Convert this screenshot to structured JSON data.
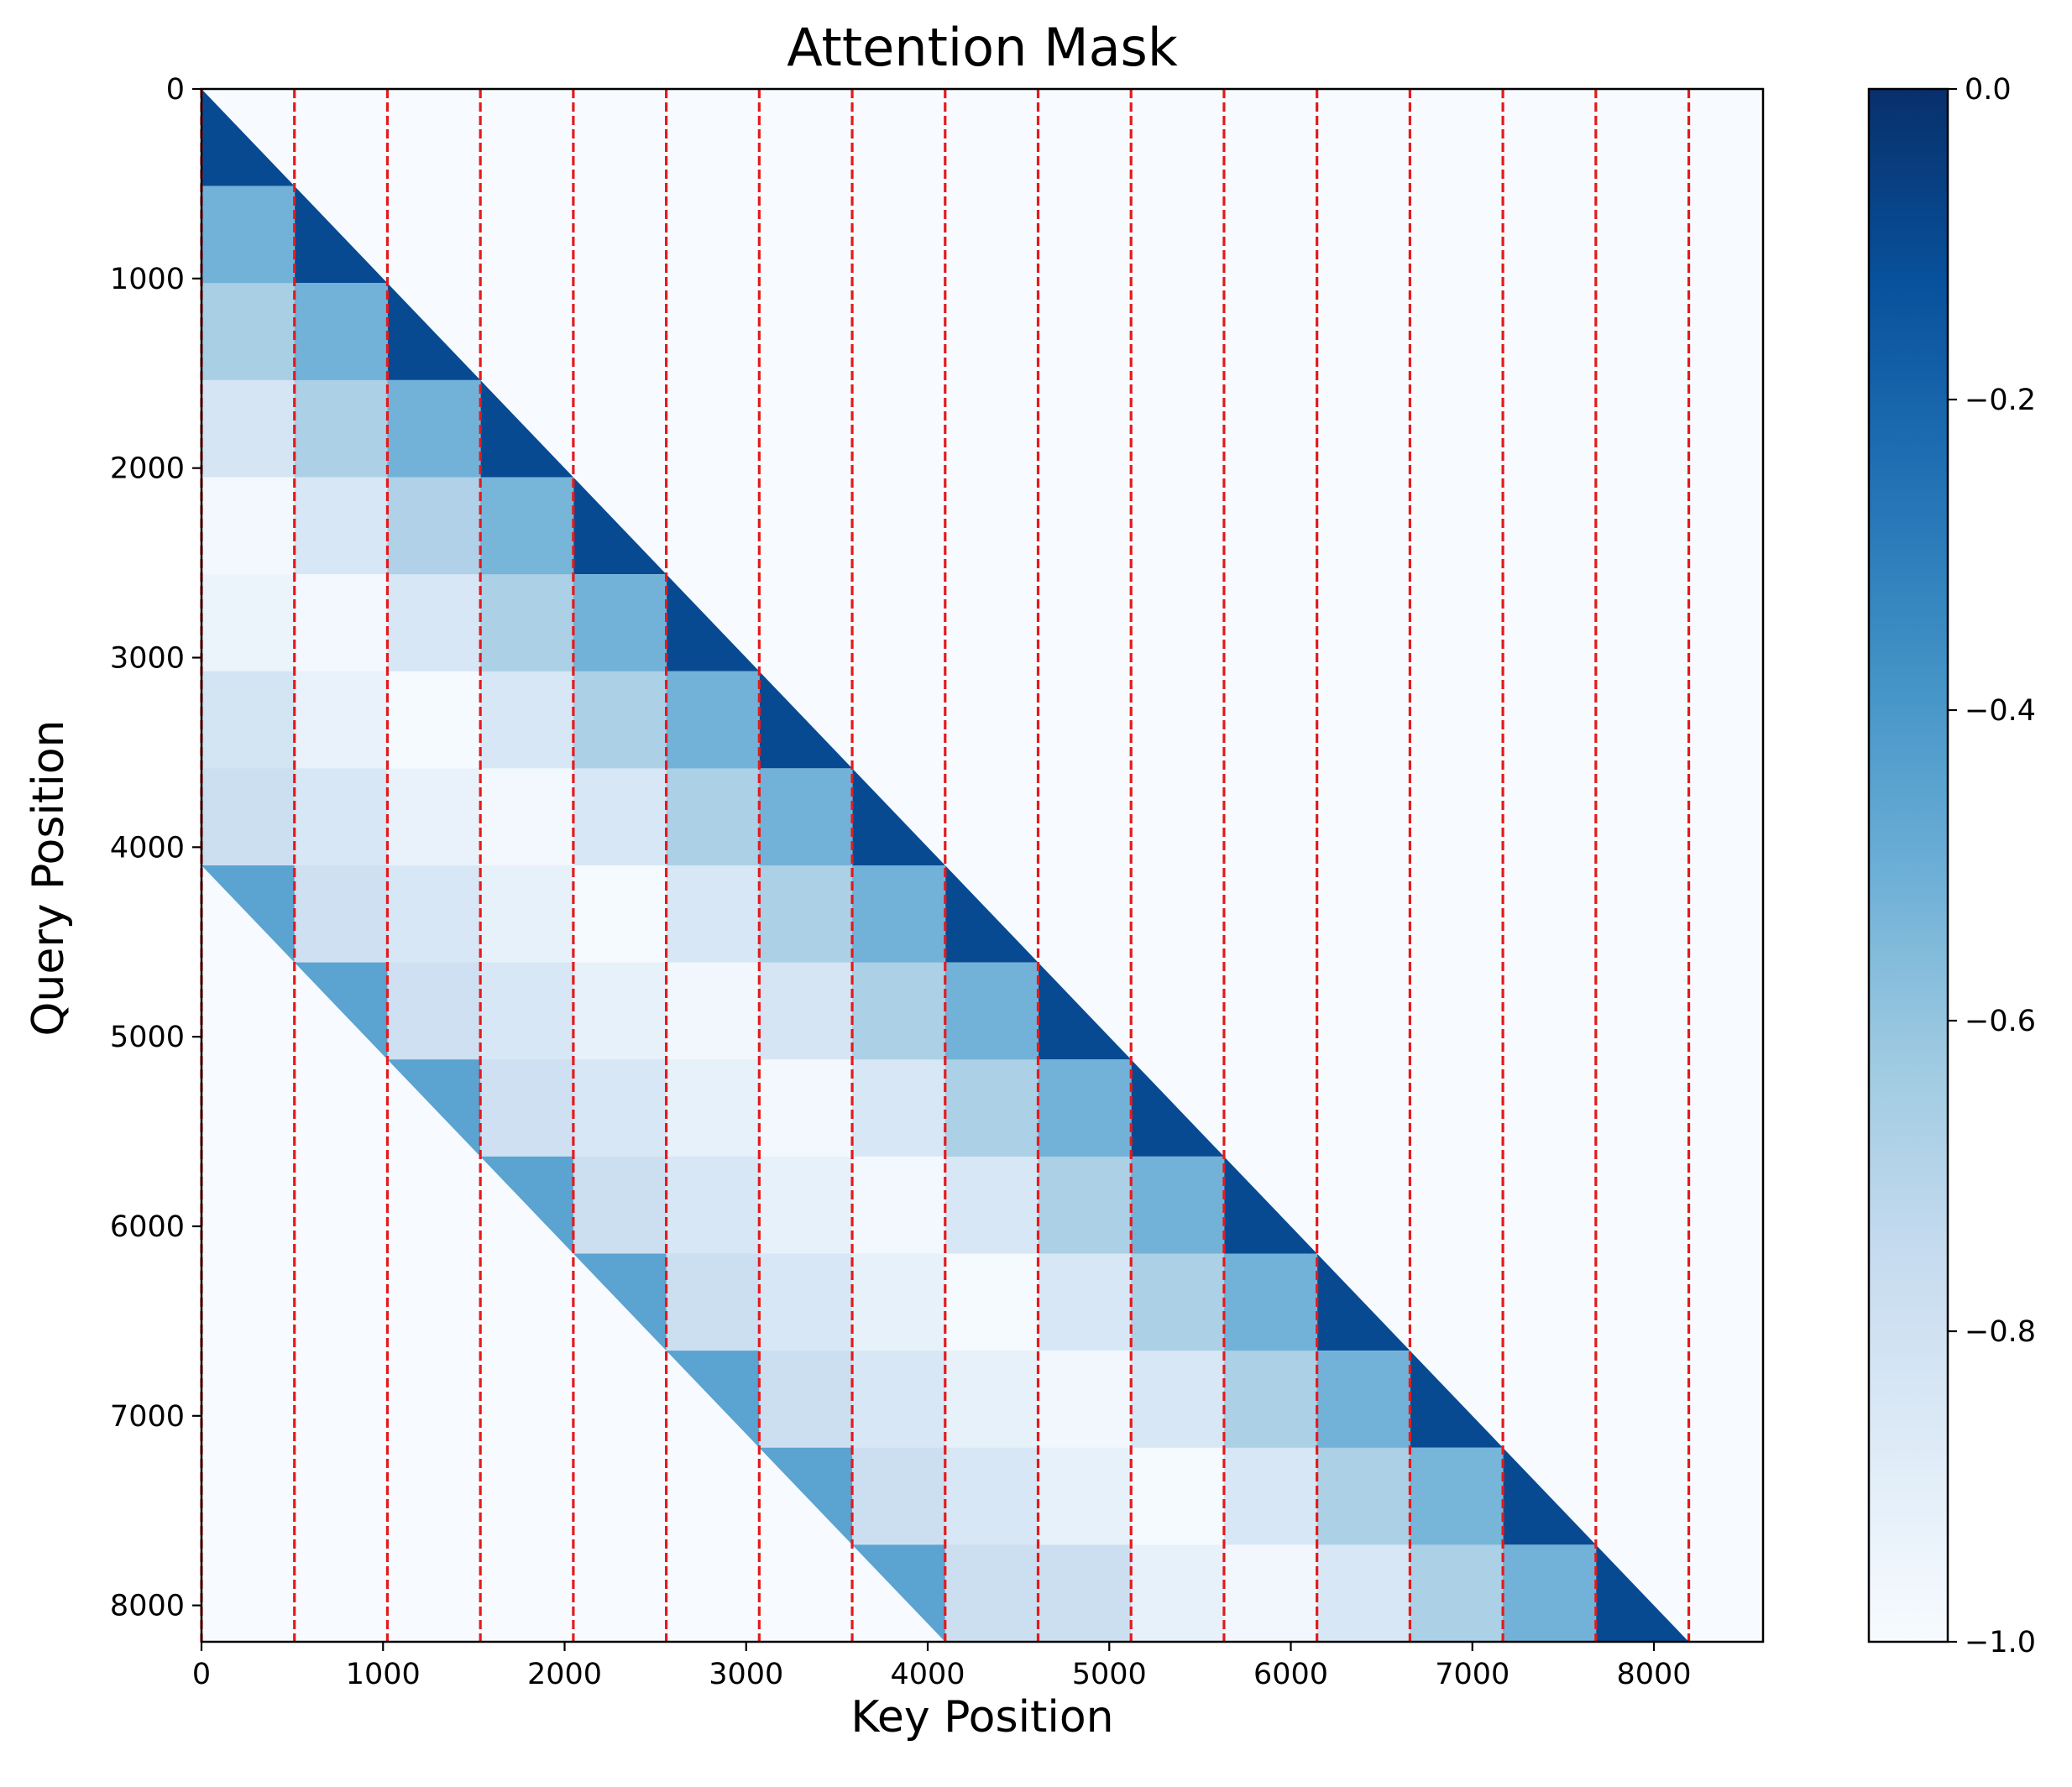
{
  "chart_data": {
    "type": "heatmap",
    "title": "Attention Mask",
    "xlabel": "Key Position",
    "ylabel": "Query Position",
    "xlim": [
      0,
      8601
    ],
    "ylim": [
      8192,
      0
    ],
    "sequence_length": 8192,
    "block_size": 512,
    "num_blocks": 16,
    "window_blocks": 8,
    "x_ticks": [
      "0",
      "1000",
      "2000",
      "3000",
      "4000",
      "5000",
      "6000",
      "7000",
      "8000"
    ],
    "y_ticks": [
      "0",
      "1000",
      "2000",
      "3000",
      "4000",
      "5000",
      "6000",
      "7000",
      "8000"
    ],
    "colorbar": {
      "range": [
        -1.0,
        0.0
      ],
      "colormap": "Blues",
      "ticks": [
        "0.0",
        "−0.2",
        "−0.4",
        "−0.6",
        "−0.8",
        "−1.0"
      ]
    },
    "background_value": -1.0,
    "diagonal_value": -0.1,
    "window_edge_value": -0.45,
    "block_values_by_row": [
      [],
      [
        -0.52
      ],
      [
        -0.66,
        -0.52
      ],
      [
        -0.83,
        -0.67,
        -0.52
      ],
      [
        -0.98,
        -0.84,
        -0.68,
        -0.53
      ],
      [
        -0.94,
        -0.98,
        -0.84,
        -0.67,
        -0.52
      ],
      [
        -0.82,
        -0.93,
        -0.99,
        -0.84,
        -0.67,
        -0.52
      ],
      [
        -0.78,
        -0.84,
        -0.93,
        -0.98,
        -0.84,
        -0.67,
        -0.52
      ],
      [
        null,
        -0.79,
        -0.84,
        -0.92,
        -0.99,
        -0.84,
        -0.67,
        -0.52
      ],
      [
        null,
        null,
        -0.79,
        -0.84,
        -0.92,
        -0.97,
        -0.83,
        -0.67,
        -0.52
      ],
      [
        null,
        null,
        null,
        -0.79,
        -0.84,
        -0.92,
        -0.98,
        -0.84,
        -0.67,
        -0.52
      ],
      [
        null,
        null,
        null,
        null,
        -0.78,
        -0.84,
        -0.92,
        -0.98,
        -0.84,
        -0.67,
        -0.52
      ],
      [
        null,
        null,
        null,
        null,
        null,
        -0.78,
        -0.84,
        -0.92,
        -0.99,
        -0.84,
        -0.67,
        -0.52
      ],
      [
        null,
        null,
        null,
        null,
        null,
        null,
        -0.78,
        -0.84,
        -0.92,
        -0.97,
        -0.84,
        -0.67,
        -0.52
      ],
      [
        null,
        null,
        null,
        null,
        null,
        null,
        null,
        -0.78,
        -0.84,
        -0.92,
        -0.99,
        -0.84,
        -0.67,
        -0.53
      ],
      [
        null,
        null,
        null,
        null,
        null,
        null,
        null,
        null,
        -0.78,
        -0.78,
        -0.92,
        -0.97,
        -0.84,
        -0.67,
        -0.52
      ]
    ],
    "boundary_lines": {
      "color": "#e41a1c",
      "style": "dashed",
      "positions": [
        0,
        512,
        1024,
        1536,
        2048,
        2560,
        3072,
        3584,
        4096,
        4608,
        5120,
        5632,
        6144,
        6656,
        7168,
        7680,
        8192
      ]
    }
  }
}
